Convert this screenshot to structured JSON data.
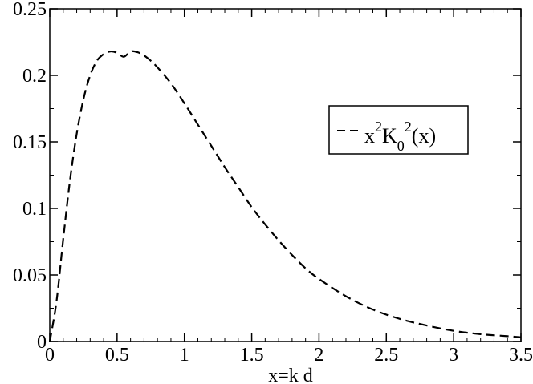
{
  "chart_data": {
    "type": "line",
    "title": "",
    "xlabel": "x=k d",
    "ylabel": "",
    "xlim": [
      0,
      3.5
    ],
    "ylim": [
      0,
      0.25
    ],
    "x_ticks": [
      "0",
      "0.5",
      "1",
      "1.5",
      "2",
      "2.5",
      "3",
      "3.5"
    ],
    "y_ticks": [
      "0",
      "0.05",
      "0.1",
      "0.15",
      "0.2",
      "0.25"
    ],
    "grid": false,
    "legend_position": "right",
    "series": [
      {
        "name": "x²K₀²(x)",
        "legend_parts": {
          "x": "x",
          "x_exp": "2",
          "K": "K",
          "K_sub": "0",
          "K_exp": "2",
          "arg": "(x)"
        },
        "line_style": "dashed",
        "color": "#000000",
        "x": [
          0.0,
          0.05,
          0.1,
          0.15,
          0.2,
          0.25,
          0.3,
          0.35,
          0.4,
          0.45,
          0.5,
          0.55,
          0.6,
          0.65,
          0.7,
          0.75,
          0.8,
          0.9,
          1.0,
          1.1,
          1.2,
          1.3,
          1.4,
          1.5,
          1.6,
          1.7,
          1.8,
          1.9,
          2.0,
          2.2,
          2.4,
          2.6,
          2.8,
          3.0,
          3.2,
          3.4,
          3.5
        ],
        "y": [
          0.0,
          0.03,
          0.077,
          0.121,
          0.156,
          0.182,
          0.2,
          0.211,
          0.216,
          0.218,
          0.217,
          0.214,
          0.218,
          0.2175,
          0.215,
          0.211,
          0.206,
          0.194,
          0.179,
          0.163,
          0.147,
          0.131,
          0.116,
          0.101,
          0.088,
          0.076,
          0.065,
          0.055,
          0.047,
          0.034,
          0.024,
          0.017,
          0.012,
          0.008,
          0.0055,
          0.004,
          0.0032
        ]
      }
    ]
  }
}
